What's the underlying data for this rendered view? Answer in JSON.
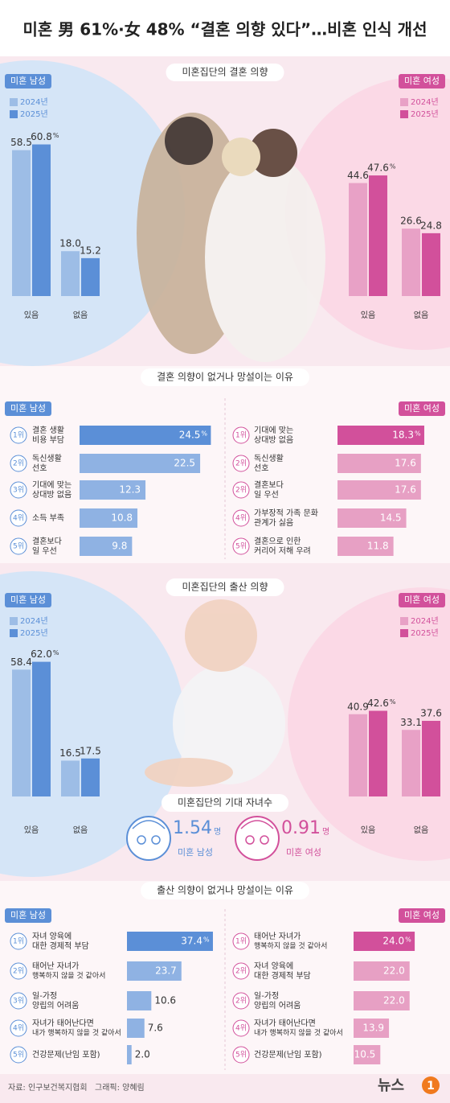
{
  "title": "미혼 男 61%·女 48% “결혼 의향 있다”…비혼 인식 개선",
  "chart_data": [
    {
      "type": "bar",
      "title": "미혼집단의 결혼 의향",
      "unit": "%",
      "panels": [
        {
          "label": "미혼 남성",
          "categories": [
            "있음",
            "없음"
          ],
          "series": [
            {
              "name": "2024년",
              "color": "#9dbde6",
              "values": [
                58.5,
                18.0
              ],
              "value_labels": [
                "58.5",
                "18.0"
              ]
            },
            {
              "name": "2025년",
              "color": "#5b8fd7",
              "values": [
                60.8,
                15.2
              ],
              "value_labels": [
                "60.8",
                "15.2"
              ]
            }
          ]
        },
        {
          "label": "미혼 여성",
          "categories": [
            "있음",
            "없음"
          ],
          "series": [
            {
              "name": "2024년",
              "color": "#e8a1c6",
              "values": [
                44.6,
                26.6
              ],
              "value_labels": [
                "44.6",
                "26.6"
              ]
            },
            {
              "name": "2025년",
              "color": "#d2509b",
              "values": [
                47.6,
                24.8
              ],
              "value_labels": [
                "47.6",
                "24.8"
              ]
            }
          ]
        }
      ]
    },
    {
      "type": "barh",
      "title": "결혼 의향이 없거나 망설이는 이유",
      "unit": "%",
      "panels": [
        {
          "label": "미혼 남성",
          "ranks": [
            "1위",
            "2위",
            "3위",
            "4위",
            "5위"
          ],
          "categories": [
            [
              "결혼 생활",
              "비용 부담"
            ],
            [
              "독신생활",
              "선호"
            ],
            [
              "기대에 맞는",
              "상대방 없음"
            ],
            [
              "소득 부족"
            ],
            [
              "결혼보다",
              "일 우선"
            ]
          ],
          "values": [
            24.5,
            22.5,
            12.3,
            10.8,
            9.8
          ],
          "value_labels": [
            "24.5",
            "22.5",
            "12.3",
            "10.8",
            "9.8"
          ],
          "colors": [
            "#5b8fd7",
            "#8fb2e3",
            "#8fb2e3",
            "#8fb2e3",
            "#8fb2e3"
          ]
        },
        {
          "label": "미혼 여성",
          "ranks": [
            "1위",
            "2위",
            "2위",
            "4위",
            "5위"
          ],
          "categories": [
            [
              "기대에 맞는",
              "상대방 없음"
            ],
            [
              "독신생활",
              "선호"
            ],
            [
              "결혼보다",
              "일 우선"
            ],
            [
              "가부장적 가족 문화",
              "관계가 싫음"
            ],
            [
              "결혼으로 인한",
              "커리어 저해 우려"
            ]
          ],
          "values": [
            18.3,
            17.6,
            17.6,
            14.5,
            11.8
          ],
          "value_labels": [
            "18.3",
            "17.6",
            "17.6",
            "14.5",
            "11.8"
          ],
          "colors": [
            "#d2509b",
            "#e7a0c4",
            "#e7a0c4",
            "#e7a0c4",
            "#e7a0c4"
          ]
        }
      ]
    },
    {
      "type": "bar",
      "title": "미혼집단의 출산 의향",
      "unit": "%",
      "panels": [
        {
          "label": "미혼 남성",
          "categories": [
            "있음",
            "없음"
          ],
          "series": [
            {
              "name": "2024년",
              "color": "#9dbde6",
              "values": [
                58.4,
                16.5
              ],
              "value_labels": [
                "58.4",
                "16.5"
              ]
            },
            {
              "name": "2025년",
              "color": "#5b8fd7",
              "values": [
                62.0,
                17.5
              ],
              "value_labels": [
                "62.0",
                "17.5"
              ]
            }
          ]
        },
        {
          "label": "미혼 여성",
          "categories": [
            "있음",
            "없음"
          ],
          "series": [
            {
              "name": "2024년",
              "color": "#e8a1c6",
              "values": [
                40.9,
                33.1
              ],
              "value_labels": [
                "40.9",
                "33.1"
              ]
            },
            {
              "name": "2025년",
              "color": "#d2509b",
              "values": [
                42.6,
                37.6
              ],
              "value_labels": [
                "42.6",
                "37.6"
              ]
            }
          ]
        }
      ]
    },
    {
      "type": "barh",
      "title": "출산 의향이 없거나 망설이는 이유",
      "unit": "%",
      "panels": [
        {
          "label": "미혼 남성",
          "ranks": [
            "1위",
            "2위",
            "3위",
            "4위",
            "5위"
          ],
          "categories": [
            [
              "자녀 양육에",
              "대한 경제적 부담"
            ],
            [
              "태어난 자녀가",
              "행복하지 않을 것 같아서"
            ],
            [
              "일-가정",
              "양립의 어려움"
            ],
            [
              "자녀가 태어난다면",
              "내가 행복하지 않을 것 같아서"
            ],
            [
              "건강문제(난임 포함)"
            ]
          ],
          "values": [
            37.4,
            23.7,
            10.6,
            7.6,
            2.0
          ],
          "value_labels": [
            "37.4",
            "23.7",
            "10.6",
            "7.6",
            "2.0"
          ],
          "colors": [
            "#5b8fd7",
            "#8fb2e3",
            "#8fb2e3",
            "#8fb2e3",
            "#8fb2e3"
          ]
        },
        {
          "label": "미혼 여성",
          "ranks": [
            "1위",
            "2위",
            "2위",
            "4위",
            "5위"
          ],
          "categories": [
            [
              "태어난 자녀가",
              "행복하지 않을 것 같아서"
            ],
            [
              "자녀 양육에",
              "대한 경제적 부담"
            ],
            [
              "일-가정",
              "양립의 어려움"
            ],
            [
              "자녀가 태어난다면",
              "내가 행복하지 않을 것 같아서"
            ],
            [
              "건강문제(난임 포함)"
            ]
          ],
          "values": [
            24.0,
            22.0,
            22.0,
            13.9,
            10.5
          ],
          "value_labels": [
            "24.0",
            "22.0",
            "22.0",
            "13.9",
            "10.5"
          ],
          "colors": [
            "#d2509b",
            "#e7a0c4",
            "#e7a0c4",
            "#e7a0c4",
            "#e7a0c4"
          ]
        }
      ]
    }
  ],
  "expected_children": {
    "title": "미혼집단의 기대 자녀수",
    "unit": "명",
    "items": [
      {
        "label": "미혼 남성",
        "value": 1.54,
        "color": "#5b8fd7"
      },
      {
        "label": "미혼 여성",
        "value": 0.91,
        "color": "#d2509b"
      }
    ]
  },
  "source": "자료: 인구보건복지협회",
  "credit": "그래픽: 양혜림",
  "logo": {
    "text": "뉴스",
    "badge": "1"
  }
}
